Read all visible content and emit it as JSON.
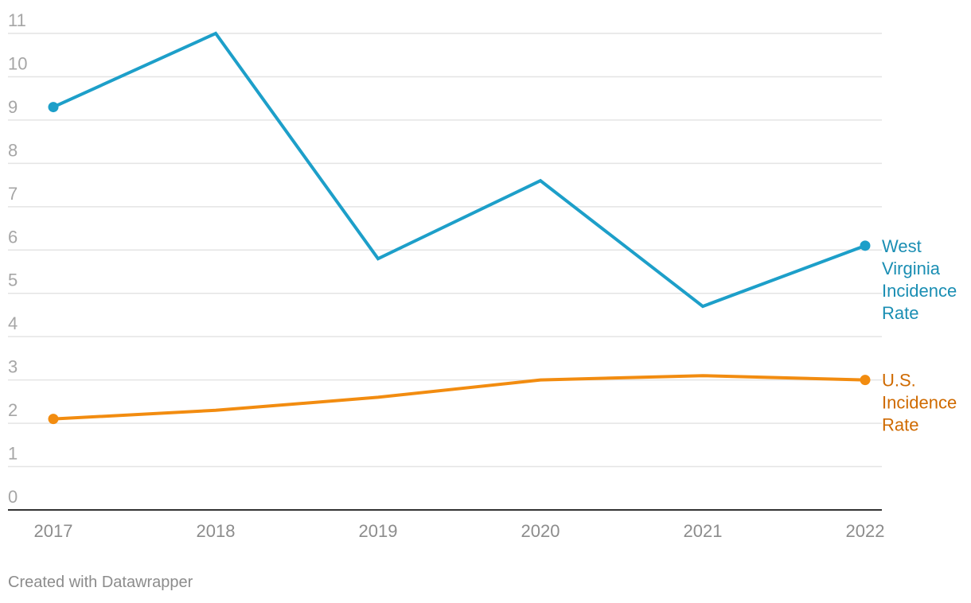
{
  "chart_data": {
    "type": "line",
    "x": [
      "2017",
      "2018",
      "2019",
      "2020",
      "2021",
      "2022"
    ],
    "ylim": [
      0,
      11
    ],
    "yticks": [
      0,
      1,
      2,
      3,
      4,
      5,
      6,
      7,
      8,
      9,
      10,
      11
    ],
    "grid": true,
    "legend": "direct labels at line ends (right)",
    "series": [
      {
        "name": "West Virginia Incidence Rate",
        "label_lines": [
          "West",
          "Virginia",
          "Incidence",
          "Rate"
        ],
        "color": "#1d9fc9",
        "label_color": "#1a8eb3",
        "values": [
          9.3,
          11.0,
          5.8,
          7.6,
          4.7,
          6.1
        ]
      },
      {
        "name": "U.S. Incidence Rate",
        "label_lines": [
          "U.S.",
          "Incidence",
          "Rate"
        ],
        "color": "#f28c10",
        "label_color": "#cf6a00",
        "values": [
          2.1,
          2.3,
          2.6,
          3.0,
          3.1,
          3.0
        ]
      }
    ]
  },
  "footer": {
    "credit": "Created with Datawrapper"
  }
}
